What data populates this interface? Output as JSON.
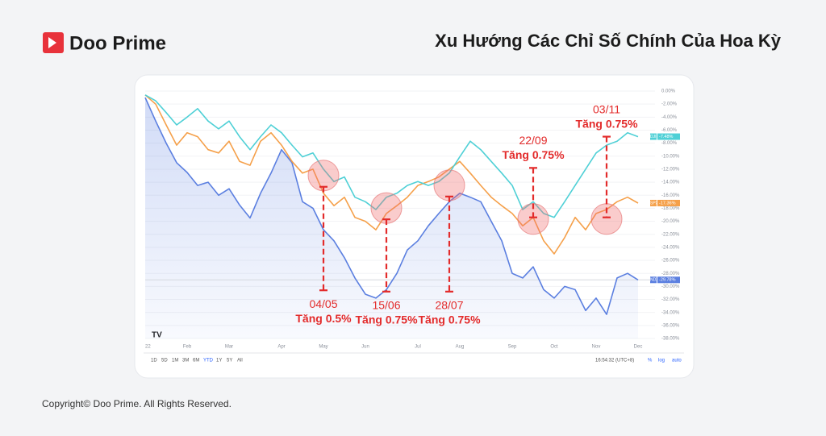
{
  "header": {
    "brand": "Doo Prime",
    "title": "Xu Hướng Các Chỉ Số Chính Của Hoa Kỳ"
  },
  "footer": "Copyright© Doo Prime. All Rights Reserved.",
  "toolbar": {
    "ranges": [
      "1D",
      "5D",
      "1M",
      "3M",
      "6M",
      "YTD",
      "1Y",
      "5Y",
      "All"
    ],
    "time": "16:54:32 (UTC+8)",
    "options": [
      "%",
      "log",
      "auto"
    ]
  },
  "chart_data": {
    "type": "line",
    "categories": [
      "22",
      null,
      null,
      null,
      "Feb",
      null,
      null,
      null,
      "Mar",
      null,
      null,
      null,
      null,
      "Apr",
      null,
      null,
      null,
      "May",
      null,
      null,
      null,
      "Jun",
      null,
      null,
      null,
      null,
      "Jul",
      null,
      null,
      null,
      "Aug",
      null,
      null,
      null,
      null,
      "Sep",
      null,
      null,
      null,
      "Oct",
      null,
      null,
      null,
      "Nov",
      null,
      null,
      null,
      "Dec"
    ],
    "ylim": [
      -38,
      0
    ],
    "yticks": [
      {
        "value": 0,
        "label": "0.00%"
      },
      {
        "value": -2,
        "label": "-2.00%"
      },
      {
        "value": -4,
        "label": "-4.00%"
      },
      {
        "value": -6,
        "label": "-6.00%"
      },
      {
        "value": -8,
        "label": "-8.00%"
      },
      {
        "value": -10,
        "label": "-10.00%"
      },
      {
        "value": -12,
        "label": "-12.00%"
      },
      {
        "value": -14,
        "label": "-14.00%"
      },
      {
        "value": -16,
        "label": "-16.00%"
      },
      {
        "value": -18,
        "label": "-18.00%"
      },
      {
        "value": -20,
        "label": "-20.00%"
      },
      {
        "value": -22,
        "label": "-22.00%"
      },
      {
        "value": -24,
        "label": "-24.00%"
      },
      {
        "value": -26,
        "label": "-26.00%"
      },
      {
        "value": -28,
        "label": "-28.00%"
      },
      {
        "value": -30,
        "label": "-30.00%"
      },
      {
        "value": -32,
        "label": "-32.00%"
      },
      {
        "value": -34,
        "label": "-34.00%"
      },
      {
        "value": -36,
        "label": "-36.00%"
      },
      {
        "value": -38,
        "label": "-38.00%"
      }
    ],
    "grid": true,
    "series": [
      {
        "name": "NDX",
        "tag": "-29.78%",
        "color": "#5b7fe0",
        "area": true,
        "values": [
          -1,
          -4.6,
          -8,
          -11,
          -12.5,
          -14.5,
          -14,
          -16,
          -15,
          -17.5,
          -19.5,
          -15.7,
          -12.6,
          -9,
          -11,
          -17,
          -18,
          -21.3,
          -23,
          -25.6,
          -28.7,
          -31.2,
          -31.8,
          -30.5,
          -28,
          -24.4,
          -23,
          -20.7,
          -18.8,
          -17,
          -15.7,
          -16.3,
          -17,
          -20,
          -23,
          -28,
          -28.7,
          -27,
          -30.5,
          -31.8,
          -30,
          -30.5,
          -33.7,
          -31.8,
          -34.3,
          -28.7,
          -28,
          -29
        ]
      },
      {
        "name": "SPX",
        "tag": "-17.36%",
        "color": "#f5a04a",
        "values": [
          -0.6,
          -2,
          -5.2,
          -8.3,
          -6.4,
          -7,
          -9,
          -9.5,
          -7.7,
          -10.8,
          -11.4,
          -7.7,
          -6.4,
          -8.3,
          -10.8,
          -12.6,
          -12,
          -15.7,
          -17.6,
          -16.3,
          -19.4,
          -20,
          -21.3,
          -18.8,
          -17.6,
          -16.3,
          -14.5,
          -13.9,
          -13.2,
          -12,
          -10.8,
          -12.6,
          -14.5,
          -16.3,
          -17.6,
          -18.8,
          -20.7,
          -19.4,
          -23,
          -25,
          -22.5,
          -19.4,
          -21.3,
          -18.8,
          -18.2,
          -17,
          -16.3,
          -17.2
        ]
      },
      {
        "name": "DJI",
        "tag": "-7.48%",
        "color": "#4fd0d6",
        "values": [
          -0.6,
          -1.5,
          -3.3,
          -5.2,
          -4,
          -2.7,
          -4.6,
          -5.8,
          -4.6,
          -7,
          -9,
          -7,
          -5.2,
          -6.4,
          -8.3,
          -10.1,
          -9.5,
          -12,
          -13.9,
          -13.2,
          -16.3,
          -17,
          -18.2,
          -16.3,
          -15.7,
          -14.5,
          -13.9,
          -14.5,
          -13.9,
          -12.6,
          -10.1,
          -7.7,
          -9,
          -10.8,
          -12.6,
          -14.5,
          -18.2,
          -17,
          -18.8,
          -19.4,
          -17,
          -14.5,
          -12,
          -9.5,
          -8.3,
          -7.7,
          -6.4,
          -7
        ]
      }
    ],
    "annotations": [
      {
        "date": "04/05",
        "text": "Tăng 0.5%",
        "x": 17,
        "from": -14.7,
        "to": -30.6,
        "placement": "below"
      },
      {
        "date": "15/06",
        "text": "Tăng 0.75%",
        "x": 23,
        "from": -19.7,
        "to": -30.8,
        "placement": "below"
      },
      {
        "date": "28/07",
        "text": "Tăng 0.75%",
        "x": 29,
        "from": -16.2,
        "to": -30.8,
        "placement": "below"
      },
      {
        "date": "22/09",
        "text": "Tăng 0.75%",
        "x": 37,
        "from": -11.8,
        "to": -19.4,
        "placement": "above"
      },
      {
        "date": "03/11",
        "text": "Tăng 0.75%",
        "x": 44,
        "from": -7,
        "to": -19.4,
        "placement": "above"
      }
    ]
  }
}
